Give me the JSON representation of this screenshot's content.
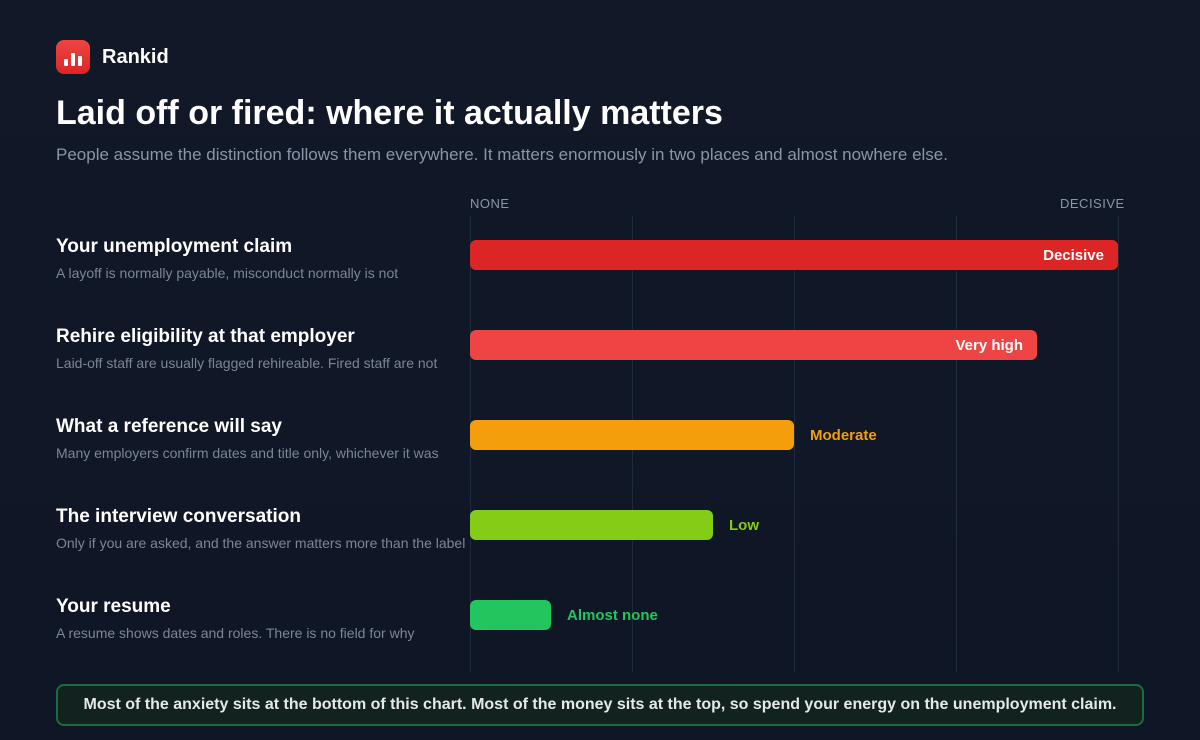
{
  "brand": {
    "name": "Rankid",
    "icon": "bar-chart-icon"
  },
  "title": "Laid off or fired: where it actually matters",
  "subtitle": "People assume the distinction follows them everywhere. It matters enormously in two places and almost nowhere else.",
  "footer": "Most of the anxiety sits at the bottom of this chart. Most of the money sits at the top, so spend your energy on the unemployment claim.",
  "chart_data": {
    "type": "bar",
    "orientation": "horizontal",
    "scale_min_label": "NONE",
    "scale_max_label": "DECISIVE",
    "xlim": [
      0,
      4
    ],
    "grid": true,
    "categories": [
      "Your unemployment claim",
      "Rehire eligibility at that employer",
      "What a reference will say",
      "The interview conversation",
      "Your resume"
    ],
    "descriptions": [
      "A layoff is normally payable, misconduct normally is not",
      "Laid-off staff are usually flagged rehireable. Fired staff are not",
      "Many employers confirm dates and title only, whichever it was",
      "Only if you are asked, and the answer matters more than the label",
      "A resume shows dates and roles. There is no field for why"
    ],
    "values": [
      4,
      3.5,
      2,
      1.5,
      0.5
    ],
    "value_labels": [
      "Decisive",
      "Very high",
      "Moderate",
      "Low",
      "Almost none"
    ],
    "colors": [
      "#dc2626",
      "#ef4444",
      "#f59e0b",
      "#84cc16",
      "#22c55e"
    ]
  }
}
